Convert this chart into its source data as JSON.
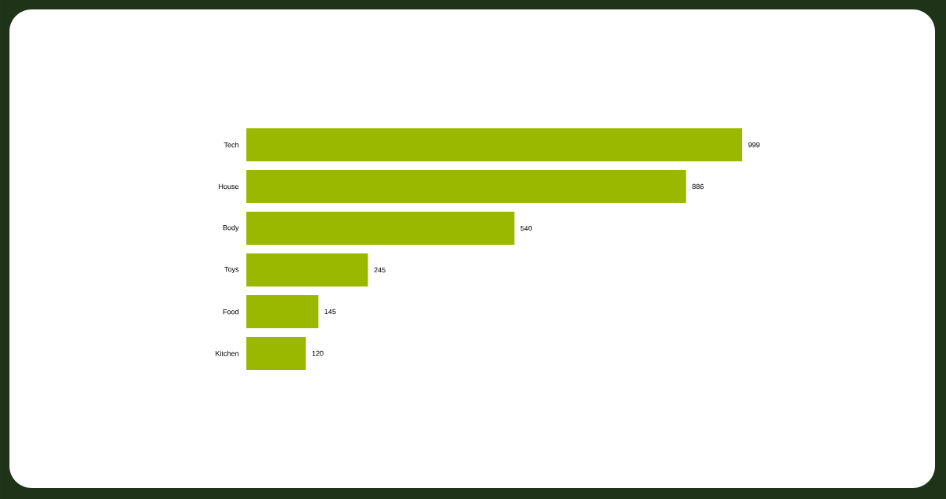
{
  "chart_data": {
    "type": "bar",
    "orientation": "horizontal",
    "categories": [
      "Tech",
      "House",
      "Body",
      "Toys",
      "Food",
      "Kitchen"
    ],
    "values": [
      999,
      886,
      540,
      245,
      145,
      120
    ],
    "color": "#9bb800",
    "data_labels": true
  }
}
